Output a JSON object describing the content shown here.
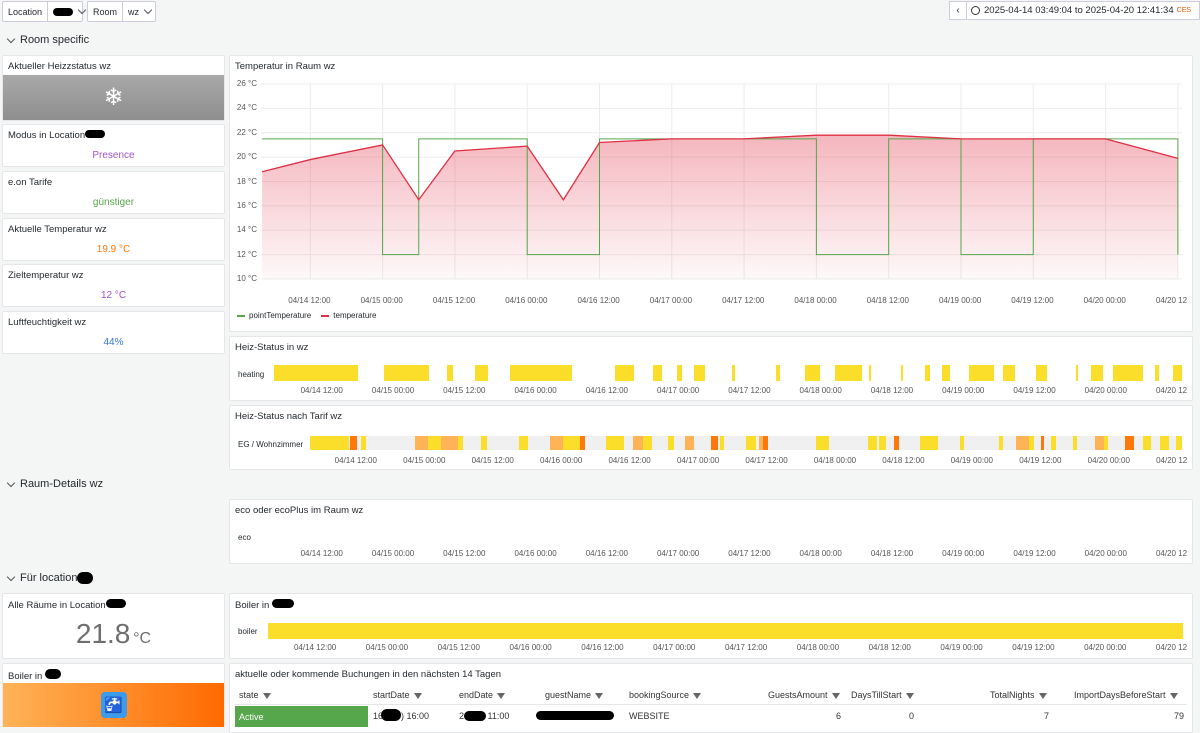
{
  "vars": {
    "location_label": "Location",
    "room_label": "Room",
    "room_value": "wz"
  },
  "timerange": {
    "text": "2025-04-14 03:49:04 to 2025-04-20 12:41:34",
    "tz": "CES"
  },
  "rows": {
    "room_specific": "Room specific",
    "raum_details": "Raum-Details wz",
    "fuer_location": "Für location"
  },
  "stats": {
    "heizstatus_title": "Aktueller Heizzstatus wz",
    "modus_title": "Modus in Location",
    "modus_value": "Presence",
    "tarif_title": "e.on Tarife",
    "tarif_value": "günstiger",
    "akt_temp_title": "Aktuelle Temperatur wz",
    "akt_temp_value": "19.9 °C",
    "ziel_title": "Zieltemperatur wz",
    "ziel_value": "12 °C",
    "feucht_title": "Luftfeuchtigkeit wz",
    "feucht_value": "44%",
    "alle_raeume_title": "Alle Räume in Location",
    "alle_raeume_value": "21.8",
    "alle_raeume_unit": "°C",
    "boiler_in_title": "Boiler in"
  },
  "panels": {
    "temp_title": "Temperatur in Raum wz",
    "heiz_title": "Heiz-Status in wz",
    "heiz_row": "heating",
    "tarif_title": "Heiz-Status nach Tarif wz",
    "tarif_row": "EG / Wohnzimmer",
    "eco_title": "eco oder ecoPlus im Raum wz",
    "eco_row": "eco",
    "boiler_title": "Boiler in",
    "boiler_row": "boiler",
    "buchungen_title": "aktuelle oder kommende Buchungen in den nächsten 14 Tagen"
  },
  "xticks": [
    "04/14 12:00",
    "04/15 00:00",
    "04/15 12:00",
    "04/16 00:00",
    "04/16 12:00",
    "04/17 00:00",
    "04/17 12:00",
    "04/18 00:00",
    "04/18 12:00",
    "04/19 00:00",
    "04/19 12:00",
    "04/20 00:00",
    "04/20 12"
  ],
  "colors": {
    "temperature": "#e02f44",
    "pointTemperature": "#56a64b",
    "heating": "#fade2a",
    "tarif_mid": "#ffb357",
    "tarif_high": "#ff780a",
    "active": "#56a64b",
    "boiler_bg": "#ff8c1a"
  },
  "chart_data": {
    "type": "line",
    "title": "Temperatur in Raum wz",
    "ylim": [
      10,
      26
    ],
    "yticks": [
      "26 °C",
      "24 °C",
      "22 °C",
      "20 °C",
      "18 °C",
      "16 °C",
      "14 °C",
      "12 °C",
      "10 °C"
    ],
    "x_start": "2025-04-14 03:49",
    "x_end": "2025-04-20 12:41",
    "legend": "bottom-left",
    "series": [
      {
        "name": "pointTemperature",
        "x": [
          "2025-04-14 04:00",
          "2025-04-14 09:00",
          "2025-04-14 12:00",
          "2025-04-15 00:00",
          "2025-04-15 06:00",
          "2025-04-15 12:00",
          "2025-04-16 00:00",
          "2025-04-16 10:00",
          "2025-04-16 12:00",
          "2025-04-17 00:00",
          "2025-04-17 12:00",
          "2025-04-18 00:00",
          "2025-04-18 12:00",
          "2025-04-19 00:00",
          "2025-04-19 12:00",
          "2025-04-20 00:00",
          "2025-04-20 12:00"
        ],
        "values": [
          21.5,
          21.5,
          21.5,
          12,
          21.5,
          21.5,
          12,
          12,
          21.5,
          21.5,
          21.5,
          12,
          21.5,
          12,
          21.5,
          21.5,
          12
        ]
      },
      {
        "name": "temperature",
        "x": [
          "2025-04-14 04:00",
          "2025-04-14 12:00",
          "2025-04-15 00:00",
          "2025-04-15 06:00",
          "2025-04-15 12:00",
          "2025-04-16 00:00",
          "2025-04-16 06:00",
          "2025-04-16 12:00",
          "2025-04-17 00:00",
          "2025-04-17 12:00",
          "2025-04-18 00:00",
          "2025-04-18 12:00",
          "2025-04-19 00:00",
          "2025-04-19 12:00",
          "2025-04-20 00:00",
          "2025-04-20 12:00"
        ],
        "values": [
          18.8,
          19.8,
          21.0,
          16.5,
          20.5,
          20.9,
          16.5,
          21.2,
          21.5,
          21.5,
          21.8,
          21.8,
          21.5,
          21.5,
          21.5,
          19.9
        ]
      }
    ]
  },
  "table": {
    "headers": [
      "state",
      "startDate",
      "endDate",
      "guestName",
      "bookingSource",
      "GuestsAmount",
      "DaysTillStart",
      "TotalNights",
      "ImportDaysBeforeStart"
    ],
    "row": {
      "state": "Active",
      "startDate": "16 (Mo) 16:00",
      "endDate": "2 (Mo) 11:00",
      "bookingSource": "WEBSITE",
      "GuestsAmount": "6",
      "DaysTillStart": "0",
      "TotalNights": "7",
      "ImportDaysBeforeStart": "79"
    }
  }
}
